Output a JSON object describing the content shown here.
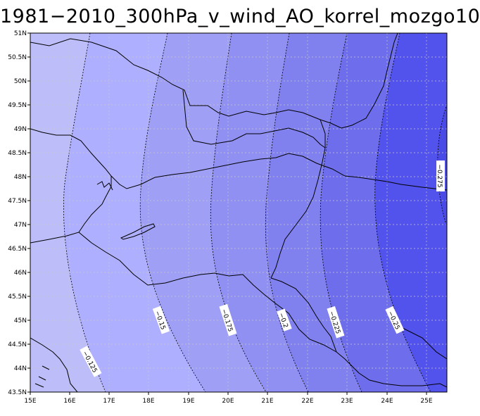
{
  "title": "1981−2010_300hPa_v_wind_AO_korrel_mozgo10",
  "axes": {
    "lat_labels": [
      "51N",
      "50.5N",
      "50N",
      "49.5N",
      "49N",
      "48.5N",
      "48N",
      "47.5N",
      "47N",
      "46.5N",
      "46N",
      "45.5N",
      "45N",
      "44.5N",
      "44N",
      "43.5N"
    ],
    "lon_labels": [
      "15E",
      "16E",
      "17E",
      "18E",
      "19E",
      "20E",
      "21E",
      "22E",
      "23E",
      "24E",
      "25E"
    ]
  },
  "contours": [
    {
      "value": -0.125,
      "label": "−0.125"
    },
    {
      "value": -0.15,
      "label": "−0.15"
    },
    {
      "value": -0.175,
      "label": "−0.175"
    },
    {
      "value": -0.2,
      "label": "−0.2"
    },
    {
      "value": -0.225,
      "label": "−0.225"
    },
    {
      "value": -0.25,
      "label": "−0.25"
    },
    {
      "value": -0.275,
      "label": "−0.275"
    }
  ],
  "colors": {
    "band_0": "#bdbdfa",
    "band_1": "#afafff",
    "band_2": "#9f9ff6",
    "band_3": "#9090f3",
    "band_4": "#8080ee",
    "band_5": "#6e6eec",
    "band_6": "#5252ec",
    "grid": "#c8c8c8"
  }
}
